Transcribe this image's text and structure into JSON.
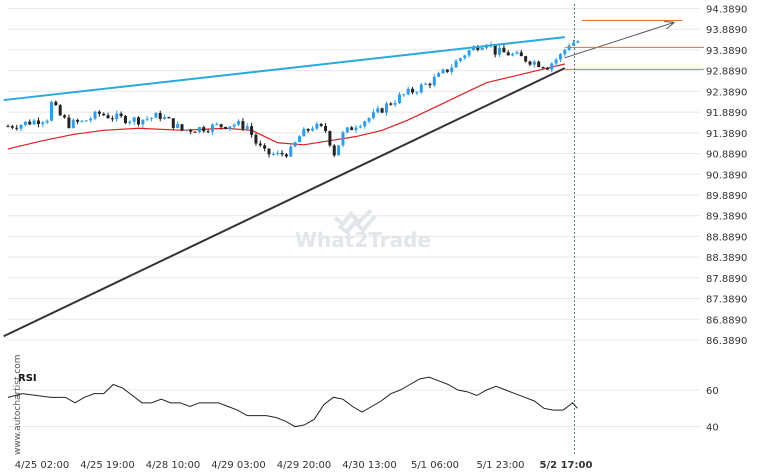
{
  "chart_data": {
    "type": "candlestick",
    "y_ticks": [
      "94.3890",
      "93.8890",
      "93.3890",
      "92.8890",
      "92.3890",
      "91.8890",
      "91.3890",
      "90.8890",
      "90.3890",
      "89.8890",
      "89.3890",
      "88.8890",
      "88.3890",
      "87.8890",
      "87.3890",
      "86.8890",
      "86.3890"
    ],
    "ylim": [
      86.1,
      94.45
    ],
    "x_ticks": [
      {
        "label": "4/25 02:00",
        "bold": false
      },
      {
        "label": "4/25 19:00",
        "bold": false
      },
      {
        "label": "4/28 10:00",
        "bold": false
      },
      {
        "label": "4/29 03:00",
        "bold": false
      },
      {
        "label": "4/29 20:00",
        "bold": false
      },
      {
        "label": "4/30 13:00",
        "bold": false
      },
      {
        "label": "5/1 06:00",
        "bold": false
      },
      {
        "label": "5/1 23:00",
        "bold": false
      },
      {
        "label": "5/2 17:00",
        "bold": true
      }
    ],
    "close_anchors": [
      [
        0,
        91.55
      ],
      [
        3,
        91.6
      ],
      [
        5,
        91.65
      ],
      [
        7,
        91.7
      ],
      [
        9,
        91.75
      ],
      [
        10,
        92.1
      ],
      [
        12,
        91.8
      ],
      [
        14,
        91.6
      ],
      [
        17,
        91.65
      ],
      [
        21,
        91.85
      ],
      [
        25,
        91.75
      ],
      [
        30,
        91.7
      ],
      [
        35,
        91.8
      ],
      [
        38,
        91.6
      ],
      [
        40,
        91.45
      ],
      [
        44,
        91.5
      ],
      [
        48,
        91.55
      ],
      [
        52,
        91.6
      ],
      [
        55,
        91.55
      ],
      [
        57,
        91.15
      ],
      [
        59,
        90.9
      ],
      [
        62,
        90.85
      ],
      [
        65,
        90.95
      ],
      [
        67,
        91.3
      ],
      [
        70,
        91.55
      ],
      [
        73,
        91.45
      ],
      [
        75,
        90.9
      ],
      [
        77,
        91.35
      ],
      [
        80,
        91.6
      ],
      [
        84,
        91.8
      ],
      [
        87,
        92.05
      ],
      [
        90,
        92.25
      ],
      [
        93,
        92.4
      ],
      [
        96,
        92.55
      ],
      [
        99,
        92.75
      ],
      [
        102,
        93.0
      ],
      [
        105,
        93.3
      ],
      [
        108,
        93.5
      ],
      [
        110,
        93.6
      ],
      [
        112,
        93.35
      ],
      [
        115,
        93.3
      ],
      [
        118,
        93.2
      ],
      [
        121,
        93.1
      ],
      [
        124,
        93.0
      ],
      [
        127,
        93.25
      ],
      [
        129,
        93.55
      ],
      [
        131,
        93.6
      ]
    ],
    "moving_average": [
      [
        0,
        91.0
      ],
      [
        8,
        91.2
      ],
      [
        15,
        91.35
      ],
      [
        22,
        91.45
      ],
      [
        30,
        91.5
      ],
      [
        40,
        91.45
      ],
      [
        50,
        91.5
      ],
      [
        56,
        91.45
      ],
      [
        62,
        91.15
      ],
      [
        68,
        91.1
      ],
      [
        74,
        91.2
      ],
      [
        80,
        91.3
      ],
      [
        86,
        91.45
      ],
      [
        92,
        91.7
      ],
      [
        98,
        92.0
      ],
      [
        104,
        92.3
      ],
      [
        110,
        92.6
      ],
      [
        116,
        92.75
      ],
      [
        122,
        92.9
      ],
      [
        128,
        93.05
      ]
    ],
    "trendlines": [
      {
        "name": "resistance",
        "color": "#2aa8e0",
        "points": [
          [
            -1,
            92.18
          ],
          [
            128,
            93.7
          ]
        ]
      },
      {
        "name": "support",
        "color": "#333333",
        "points": [
          [
            -1,
            86.48
          ],
          [
            128,
            92.95
          ]
        ]
      },
      {
        "name": "projection",
        "color": "#555555",
        "arrow": true,
        "points": [
          [
            128,
            93.2
          ],
          [
            153,
            94.05
          ]
        ]
      }
    ],
    "target_lines": [
      {
        "color": "#e07040",
        "price": 94.1,
        "from_index": 132,
        "to_index": 155
      },
      {
        "color": "#e07040",
        "price": 93.45,
        "from_index": 128,
        "to_index": 160
      },
      {
        "color": "#e07040",
        "price": 92.92,
        "from_index": 128,
        "to_index": 160
      }
    ],
    "rsi": {
      "label": "RSI",
      "levels": [
        "60",
        "40"
      ],
      "ylim": [
        30,
        72
      ],
      "values": [
        [
          0,
          56
        ],
        [
          3,
          58
        ],
        [
          6,
          57
        ],
        [
          9,
          56
        ],
        [
          12,
          56
        ],
        [
          14,
          53
        ],
        [
          16,
          56
        ],
        [
          18,
          58
        ],
        [
          20,
          58
        ],
        [
          22,
          63
        ],
        [
          24,
          61
        ],
        [
          26,
          57
        ],
        [
          28,
          53
        ],
        [
          30,
          53
        ],
        [
          32,
          55
        ],
        [
          34,
          53
        ],
        [
          36,
          53
        ],
        [
          38,
          51
        ],
        [
          40,
          53
        ],
        [
          42,
          53
        ],
        [
          44,
          53
        ],
        [
          46,
          51
        ],
        [
          48,
          49
        ],
        [
          50,
          46
        ],
        [
          52,
          46
        ],
        [
          54,
          46
        ],
        [
          56,
          45
        ],
        [
          58,
          43
        ],
        [
          60,
          40
        ],
        [
          62,
          41
        ],
        [
          64,
          44
        ],
        [
          66,
          52
        ],
        [
          68,
          56
        ],
        [
          70,
          55
        ],
        [
          72,
          51
        ],
        [
          74,
          48
        ],
        [
          76,
          51
        ],
        [
          78,
          54
        ],
        [
          80,
          58
        ],
        [
          82,
          60
        ],
        [
          84,
          63
        ],
        [
          86,
          66
        ],
        [
          88,
          67
        ],
        [
          90,
          65
        ],
        [
          92,
          63
        ],
        [
          94,
          60
        ],
        [
          96,
          59
        ],
        [
          98,
          57
        ],
        [
          100,
          60
        ],
        [
          102,
          62
        ],
        [
          104,
          60
        ],
        [
          106,
          58
        ],
        [
          108,
          56
        ],
        [
          110,
          54
        ],
        [
          112,
          50
        ],
        [
          114,
          49
        ],
        [
          116,
          49
        ],
        [
          118,
          53
        ],
        [
          119,
          50
        ]
      ]
    },
    "current_time_index": 127,
    "price_range_hint": "4/25 to 5/2"
  },
  "watermark": {
    "text": "What2Trade",
    "vertical": "www.autochartist.com"
  },
  "colors": {
    "bull": "#2a9df4",
    "bear": "#222222",
    "ma": "#e02020",
    "grid": "#e8e8e8"
  }
}
